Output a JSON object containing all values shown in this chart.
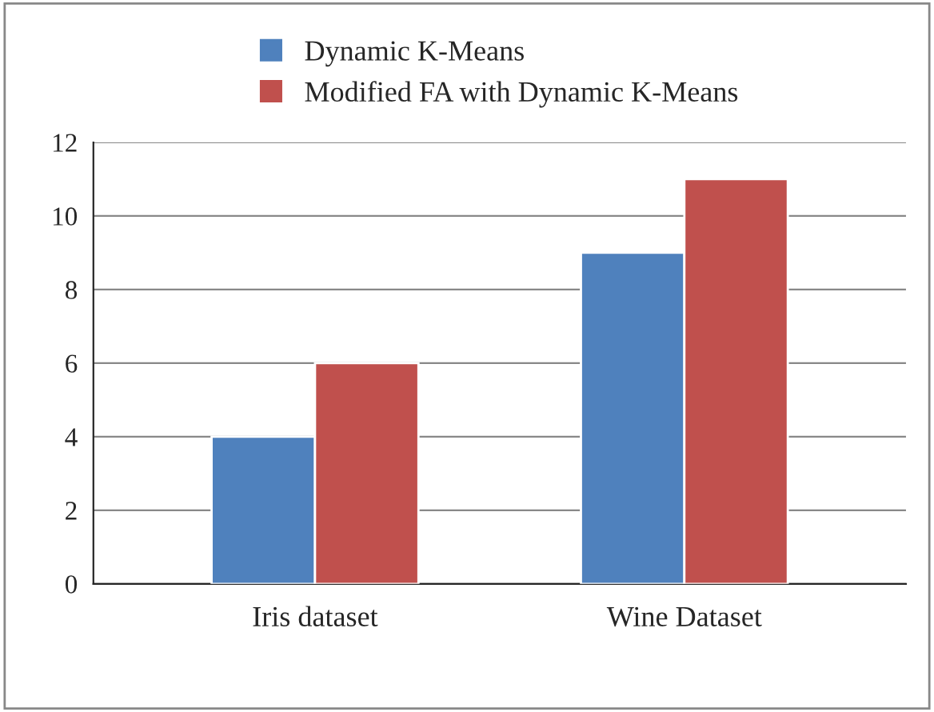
{
  "chart_data": {
    "type": "bar",
    "categories": [
      "Iris dataset",
      "Wine Dataset"
    ],
    "series": [
      {
        "name": "Dynamic K-Means",
        "color": "#4f81bd",
        "values": [
          4,
          9
        ]
      },
      {
        "name": "Modified FA with Dynamic K-Means",
        "color": "#c0504d",
        "values": [
          6,
          11
        ]
      }
    ],
    "ylim": [
      0,
      12
    ],
    "yticks": [
      0,
      2,
      4,
      6,
      8,
      10,
      12
    ],
    "grid": "y",
    "legend": "top"
  }
}
